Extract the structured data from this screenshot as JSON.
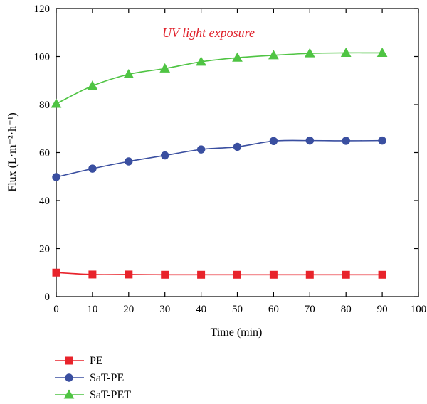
{
  "chart_data": {
    "type": "line",
    "title": "",
    "annotation": "UV light exposure",
    "xlabel": "Time (min)",
    "ylabel": "Flux (L·m⁻²·h⁻¹)",
    "xlim": [
      0,
      100
    ],
    "ylim": [
      0,
      120
    ],
    "xticks": [
      0,
      10,
      20,
      30,
      40,
      50,
      60,
      70,
      80,
      90,
      100
    ],
    "yticks": [
      0,
      20,
      40,
      60,
      80,
      100,
      120
    ],
    "grid": false,
    "legend_position": "bottom-left",
    "x": [
      0,
      10,
      20,
      30,
      40,
      50,
      60,
      70,
      80,
      90
    ],
    "series": [
      {
        "name": "PE",
        "color": "#e8232b",
        "marker": "square",
        "values": [
          10,
          9.2,
          9.2,
          9.1,
          9.1,
          9.1,
          9.1,
          9.1,
          9.1,
          9.1
        ]
      },
      {
        "name": "SaT-PE",
        "color": "#3a4fa0",
        "marker": "circle",
        "values": [
          49.8,
          53.3,
          56.3,
          58.8,
          61.3,
          62.4,
          64.8,
          65.0,
          64.9,
          65.0
        ]
      },
      {
        "name": "SaT-PET",
        "color": "#4fc443",
        "marker": "triangle",
        "values": [
          80.3,
          87.8,
          92.6,
          95.0,
          97.8,
          99.5,
          100.5,
          101.3,
          101.5,
          101.5
        ]
      }
    ]
  }
}
